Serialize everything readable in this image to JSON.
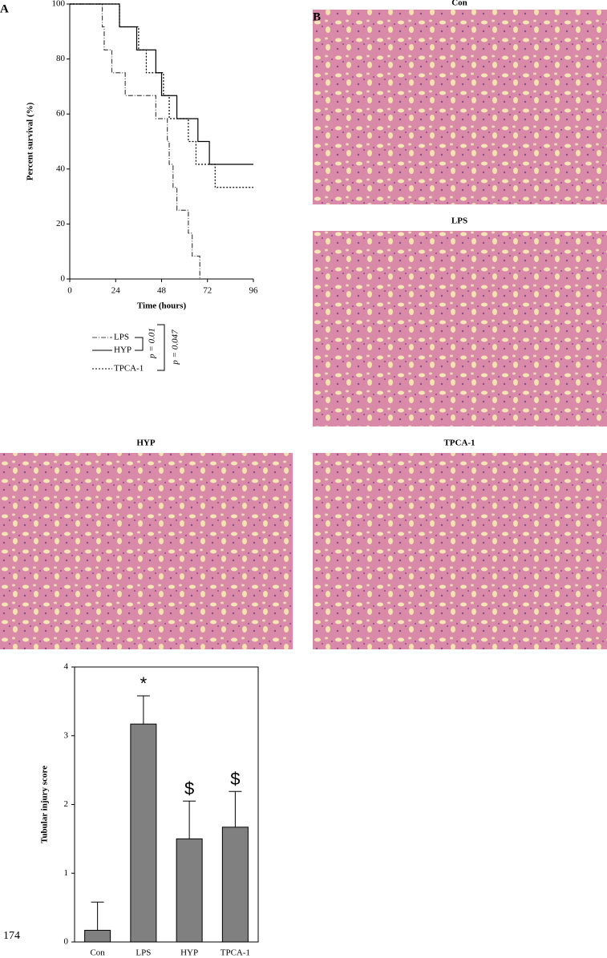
{
  "chart_data": [
    {
      "type": "line",
      "step": true,
      "panel": "A",
      "x_label": "Time (hours)",
      "y_label": "Percent survival (%)",
      "xlim": [
        0,
        96
      ],
      "xticks": [
        0,
        24,
        48,
        72,
        96
      ],
      "ylim": [
        0,
        100
      ],
      "yticks": [
        0,
        20,
        40,
        60,
        80,
        100
      ],
      "series": [
        {
          "name": "LPS",
          "color": "#444444",
          "dash": "dashdot",
          "x": [
            0,
            17,
            18,
            22,
            29,
            45,
            51,
            52,
            54,
            56,
            62,
            64,
            68
          ],
          "values": [
            100,
            91.7,
            83.3,
            75,
            66.7,
            58.3,
            50,
            41.7,
            33.3,
            25,
            16.7,
            8.3,
            0
          ]
        },
        {
          "name": "HYP",
          "color": "#000000",
          "dash": "solid",
          "x": [
            0,
            26,
            35,
            45,
            48,
            56,
            67,
            73,
            96
          ],
          "values": [
            100,
            91.7,
            83.3,
            75,
            66.7,
            58.3,
            50,
            41.7,
            41.7
          ]
        },
        {
          "name": "TPCA-1",
          "color": "#000000",
          "dash": "dotted",
          "x": [
            0,
            26,
            36,
            40,
            49,
            52,
            62,
            66,
            76,
            96
          ],
          "values": [
            100,
            91.7,
            83.3,
            75,
            66.7,
            58.3,
            50,
            41.7,
            33.3,
            33.3
          ]
        }
      ],
      "annotations": [
        "p = 0.01",
        "p = 0.047"
      ]
    },
    {
      "type": "bar",
      "y_label": "Tubular injury score",
      "categories": [
        "Con",
        "LPS",
        "HYP",
        "TPCA-1"
      ],
      "values": [
        0.17,
        3.17,
        1.5,
        1.67
      ],
      "errors": [
        0.41,
        0.41,
        0.55,
        0.52
      ],
      "markers": [
        null,
        "*",
        "$",
        "$"
      ],
      "color": "#808080",
      "ylim": [
        0,
        4
      ],
      "yticks": [
        0,
        1,
        2,
        3,
        4
      ]
    }
  ],
  "images": {
    "panel": "B",
    "labels": [
      "Con",
      "LPS",
      "HYP",
      "TPCA-1"
    ]
  },
  "page_number": "174"
}
